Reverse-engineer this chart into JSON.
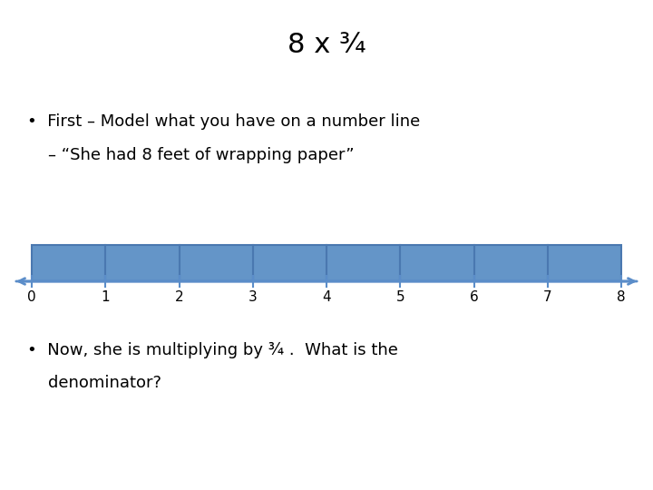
{
  "title": "8 x ¾",
  "title_fontsize": 22,
  "bullet1_line1": "•  First – Model what you have on a number line",
  "bullet1_line2": "    – “She had 8 feet of wrapping paper”",
  "bullet2_line1": "•  Now, she is multiplying by ¾ .  What is the",
  "bullet2_line2": "    denominator?",
  "bullet_fontsize": 13,
  "number_line_ticks": [
    0,
    1,
    2,
    3,
    4,
    5,
    6,
    7,
    8
  ],
  "bar_color": "#6495C8",
  "bar_edge_color": "#4a78b0",
  "number_line_color": "#5B8DC9",
  "tick_label_fontsize": 11,
  "background_color": "#ffffff"
}
